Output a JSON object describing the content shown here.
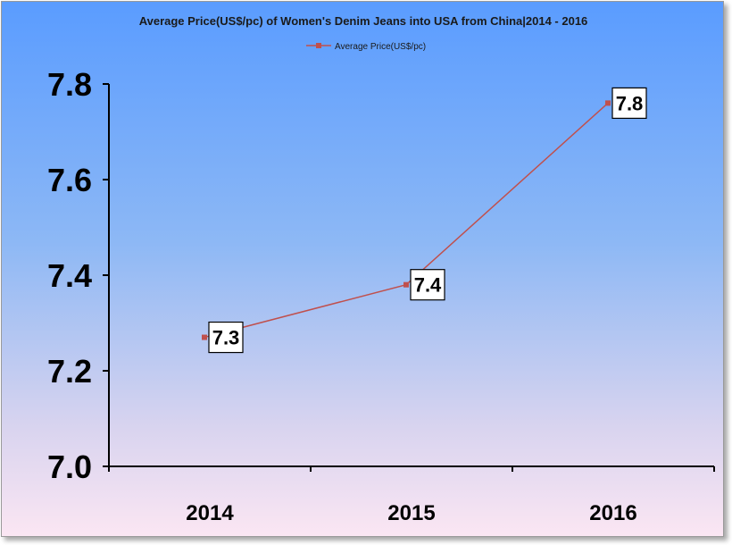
{
  "chart_data": {
    "type": "line",
    "title": "Average Price(US$/pc) of Women's Denim Jeans into USA from China|2014 - 2016",
    "xlabel": "",
    "ylabel": "",
    "categories": [
      "2014",
      "2015",
      "2016"
    ],
    "series": [
      {
        "name": "Average Price(US$/pc)",
        "values": [
          7.27,
          7.38,
          7.76
        ],
        "labels": [
          "7.3",
          "7.4",
          "7.8"
        ]
      }
    ],
    "ylim": [
      7.0,
      7.8
    ],
    "yticks": [
      "7.0",
      "7.2",
      "7.4",
      "7.6",
      "7.8"
    ],
    "grid": false,
    "legend": "top-center",
    "colors": {
      "series": "#c0504d"
    }
  }
}
